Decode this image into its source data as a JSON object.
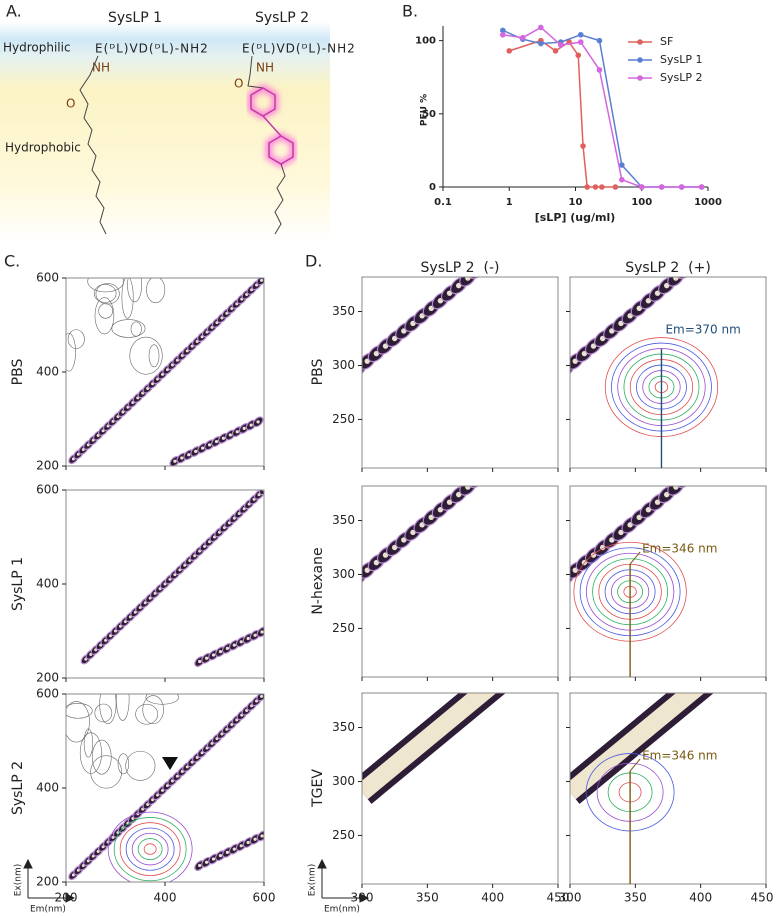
{
  "panel_a": {
    "label": "A.",
    "hydrophilic": "Hydrophilic",
    "hydrophobic": "Hydrophobic",
    "molecules": [
      {
        "name": "SysLP 1",
        "peptide": "E(ᴰL)VD(ᴰL)-NH2",
        "amide_n": "NH",
        "amide_o": "O"
      },
      {
        "name": "SysLP 2",
        "peptide": "E(ᴰL)VD(ᴰL)-NH2",
        "amide_n": "NH",
        "amide_o": "O"
      }
    ]
  },
  "panel_b_label": "B.",
  "chart_data": {
    "type": "line",
    "xlabel": "[sLP] (ug/ml)",
    "ylabel": "PFU %",
    "log_x": true,
    "xlim": [
      0.1,
      1000
    ],
    "xticks": [
      0.1,
      1,
      10,
      100,
      1000
    ],
    "ylim": [
      0,
      110
    ],
    "yticks": [
      0,
      50,
      100
    ],
    "legend": "upper right",
    "series": [
      {
        "name": "SF",
        "color": "#e0605e",
        "x": [
          1,
          3,
          5,
          8,
          11,
          13,
          15,
          20,
          25,
          40
        ],
        "values": [
          93,
          100,
          93,
          99,
          90,
          28,
          0,
          0,
          0,
          0
        ]
      },
      {
        "name": "SysLP 1",
        "color": "#5b7fd0",
        "x": [
          0.8,
          1.6,
          3,
          6,
          12,
          23,
          50,
          100,
          200,
          400,
          800
        ],
        "values": [
          107,
          101,
          98,
          99,
          104,
          100,
          15,
          0,
          0,
          0,
          0
        ]
      },
      {
        "name": "SysLP 2",
        "color": "#d466e0",
        "x": [
          0.8,
          1.6,
          3,
          6,
          12,
          23,
          50,
          100,
          200,
          400,
          800
        ],
        "values": [
          104,
          102,
          109,
          97,
          99,
          80,
          5,
          0,
          0,
          0,
          0
        ]
      }
    ]
  },
  "panel_c": {
    "label": "C.",
    "xlim": [
      200,
      600
    ],
    "ylim": [
      200,
      600
    ],
    "xticks": [
      200,
      400,
      600
    ],
    "yticks": [
      200,
      400,
      600
    ],
    "xlabel": "Em(nm)",
    "ylabel": "Ex(nm)",
    "rows": [
      "PBS",
      "SysLP 1",
      "SysLP 2"
    ]
  },
  "panel_d": {
    "label": "D.",
    "columns": [
      "SysLP 2  (-)",
      "SysLP 2  (+)"
    ],
    "rows": [
      "PBS",
      "N-hexane",
      "TGEV"
    ],
    "xlim": [
      300,
      450
    ],
    "ylim": [
      205,
      382
    ],
    "xticks": [
      300,
      350,
      400,
      450
    ],
    "yticks": [
      250,
      300,
      350
    ],
    "xlabel": "Em(nm)",
    "ylabel": "Ex(nm)",
    "em_markers": [
      {
        "text": "Em=370 nm",
        "value": 370
      },
      {
        "text": "Em=346 nm",
        "value": 346
      },
      {
        "text": "Em=346 nm",
        "value": 346
      }
    ]
  }
}
